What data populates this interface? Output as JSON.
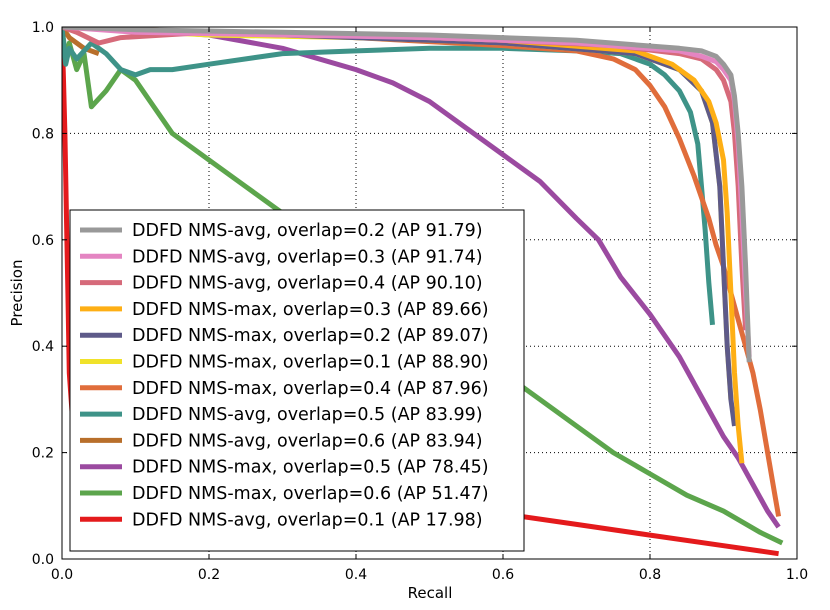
{
  "chart_data": {
    "type": "line",
    "title": "",
    "xlabel": "Recall",
    "ylabel": "Precision",
    "xlim": [
      0.0,
      1.0
    ],
    "ylim": [
      0.0,
      1.0
    ],
    "xticks": [
      "0.0",
      "0.2",
      "0.4",
      "0.6",
      "0.8",
      "1.0"
    ],
    "yticks": [
      "0.0",
      "0.2",
      "0.4",
      "0.6",
      "0.8",
      "1.0"
    ],
    "grid": true,
    "legend_location": "lower-left",
    "series": [
      {
        "name": "DDFD NMS-avg, overlap=0.2 (AP 91.79)",
        "color": "#999999",
        "x": [
          0.0,
          0.1,
          0.3,
          0.5,
          0.7,
          0.84,
          0.87,
          0.89,
          0.9,
          0.91,
          0.915,
          0.92,
          0.925,
          0.93,
          0.935
        ],
        "y": [
          1.0,
          0.995,
          0.99,
          0.985,
          0.975,
          0.96,
          0.955,
          0.945,
          0.93,
          0.91,
          0.87,
          0.8,
          0.7,
          0.55,
          0.37
        ]
      },
      {
        "name": "DDFD NMS-avg, overlap=0.3 (AP 91.74)",
        "color": "#e485c2",
        "x": [
          0.0,
          0.1,
          0.3,
          0.5,
          0.7,
          0.84,
          0.87,
          0.89,
          0.9,
          0.91,
          0.915,
          0.92,
          0.925,
          0.93,
          0.935
        ],
        "y": [
          1.0,
          0.99,
          0.985,
          0.98,
          0.97,
          0.955,
          0.945,
          0.935,
          0.92,
          0.9,
          0.86,
          0.78,
          0.65,
          0.5,
          0.38
        ]
      },
      {
        "name": "DDFD NMS-avg, overlap=0.4 (AP 90.10)",
        "color": "#d66a7a",
        "x": [
          0.0,
          0.02,
          0.05,
          0.08,
          0.2,
          0.4,
          0.6,
          0.75,
          0.84,
          0.87,
          0.89,
          0.9,
          0.91,
          0.915,
          0.92,
          0.925,
          0.93
        ],
        "y": [
          1.0,
          0.99,
          0.97,
          0.98,
          0.99,
          0.985,
          0.975,
          0.965,
          0.95,
          0.94,
          0.92,
          0.9,
          0.86,
          0.8,
          0.7,
          0.55,
          0.43
        ]
      },
      {
        "name": "DDFD NMS-max, overlap=0.3 (AP 89.66)",
        "color": "#feaf15",
        "x": [
          0.0,
          0.2,
          0.4,
          0.6,
          0.78,
          0.83,
          0.86,
          0.88,
          0.89,
          0.9,
          0.905,
          0.91,
          0.915,
          0.92,
          0.925
        ],
        "y": [
          1.0,
          0.99,
          0.985,
          0.975,
          0.955,
          0.93,
          0.9,
          0.86,
          0.82,
          0.75,
          0.65,
          0.5,
          0.35,
          0.25,
          0.18
        ]
      },
      {
        "name": "DDFD NMS-max, overlap=0.2 (AP 89.07)",
        "color": "#5e5a89",
        "x": [
          0.0,
          0.2,
          0.4,
          0.6,
          0.78,
          0.84,
          0.87,
          0.885,
          0.895,
          0.9,
          0.905,
          0.91,
          0.915
        ],
        "y": [
          1.0,
          0.99,
          0.98,
          0.97,
          0.95,
          0.92,
          0.88,
          0.82,
          0.7,
          0.55,
          0.4,
          0.3,
          0.25
        ]
      },
      {
        "name": "DDFD NMS-max, overlap=0.1 (AP 88.90)",
        "color": "#f0e22a",
        "x": [
          0.0,
          0.2,
          0.4,
          0.6,
          0.78,
          0.84,
          0.87,
          0.885,
          0.895,
          0.9,
          0.905,
          0.91
        ],
        "y": [
          1.0,
          0.985,
          0.98,
          0.97,
          0.95,
          0.92,
          0.88,
          0.82,
          0.7,
          0.55,
          0.4,
          0.3
        ]
      },
      {
        "name": "DDFD NMS-max, overlap=0.4 (AP 87.96)",
        "color": "#e06d3b",
        "x": [
          0.0,
          0.2,
          0.4,
          0.6,
          0.7,
          0.75,
          0.78,
          0.8,
          0.82,
          0.84,
          0.86,
          0.88,
          0.89,
          0.9,
          0.91,
          0.92,
          0.93,
          0.94,
          0.95,
          0.96,
          0.97,
          0.975
        ],
        "y": [
          1.0,
          0.99,
          0.98,
          0.965,
          0.955,
          0.94,
          0.92,
          0.89,
          0.85,
          0.79,
          0.72,
          0.64,
          0.59,
          0.55,
          0.5,
          0.45,
          0.4,
          0.35,
          0.28,
          0.2,
          0.12,
          0.08
        ]
      },
      {
        "name": "DDFD NMS-avg, overlap=0.5 (AP 83.99)",
        "color": "#3e9388",
        "x": [
          0.0,
          0.005,
          0.01,
          0.02,
          0.04,
          0.06,
          0.08,
          0.1,
          0.12,
          0.15,
          0.2,
          0.3,
          0.4,
          0.5,
          0.6,
          0.7,
          0.76,
          0.8,
          0.82,
          0.84,
          0.855,
          0.865,
          0.87,
          0.875,
          0.88,
          0.885
        ],
        "y": [
          1.0,
          0.93,
          0.96,
          0.94,
          0.97,
          0.95,
          0.92,
          0.91,
          0.92,
          0.92,
          0.93,
          0.95,
          0.955,
          0.96,
          0.96,
          0.955,
          0.95,
          0.93,
          0.91,
          0.88,
          0.84,
          0.78,
          0.7,
          0.62,
          0.52,
          0.44
        ]
      },
      {
        "name": "DDFD NMS-avg, overlap=0.6 (AP 83.94)",
        "color": "#b86f2b",
        "x": [
          0.0,
          0.01,
          0.02,
          0.03,
          0.05
        ],
        "y": [
          1.0,
          0.98,
          0.97,
          0.96,
          0.95
        ]
      },
      {
        "name": "DDFD NMS-max, overlap=0.5 (AP 78.45)",
        "color": "#9b4aa0",
        "x": [
          0.0,
          0.1,
          0.2,
          0.3,
          0.4,
          0.45,
          0.5,
          0.55,
          0.6,
          0.65,
          0.7,
          0.73,
          0.76,
          0.8,
          0.82,
          0.84,
          0.86,
          0.88,
          0.9,
          0.92,
          0.94,
          0.96,
          0.975
        ],
        "y": [
          1.0,
          0.995,
          0.985,
          0.96,
          0.92,
          0.895,
          0.86,
          0.81,
          0.76,
          0.71,
          0.64,
          0.6,
          0.53,
          0.46,
          0.42,
          0.38,
          0.33,
          0.28,
          0.23,
          0.19,
          0.14,
          0.09,
          0.06
        ]
      },
      {
        "name": "DDFD NMS-max, overlap=0.6 (AP 51.47)",
        "color": "#5ca54c",
        "x": [
          0.0,
          0.005,
          0.01,
          0.02,
          0.03,
          0.04,
          0.06,
          0.08,
          0.1,
          0.12,
          0.15,
          0.2,
          0.25,
          0.3,
          0.35,
          0.4,
          0.45,
          0.5,
          0.55,
          0.6,
          0.65,
          0.7,
          0.75,
          0.8,
          0.85,
          0.9,
          0.95,
          0.98
        ],
        "y": [
          1.0,
          0.94,
          0.97,
          0.92,
          0.95,
          0.85,
          0.88,
          0.92,
          0.9,
          0.86,
          0.8,
          0.75,
          0.7,
          0.65,
          0.6,
          0.55,
          0.5,
          0.45,
          0.4,
          0.35,
          0.3,
          0.25,
          0.2,
          0.16,
          0.12,
          0.09,
          0.05,
          0.03
        ]
      },
      {
        "name": "DDFD NMS-avg, overlap=0.1 (AP 17.98)",
        "color": "#e41a1c",
        "x": [
          0.0,
          0.002,
          0.004,
          0.006,
          0.008,
          0.01,
          0.015,
          0.03,
          0.1,
          0.2,
          0.3,
          0.4,
          0.5,
          0.6,
          0.7,
          0.8,
          0.9,
          0.95,
          0.975
        ],
        "y": [
          1.0,
          0.9,
          0.8,
          0.65,
          0.5,
          0.35,
          0.25,
          0.2,
          0.17,
          0.15,
          0.14,
          0.12,
          0.1,
          0.085,
          0.065,
          0.045,
          0.025,
          0.015,
          0.01
        ]
      }
    ]
  }
}
